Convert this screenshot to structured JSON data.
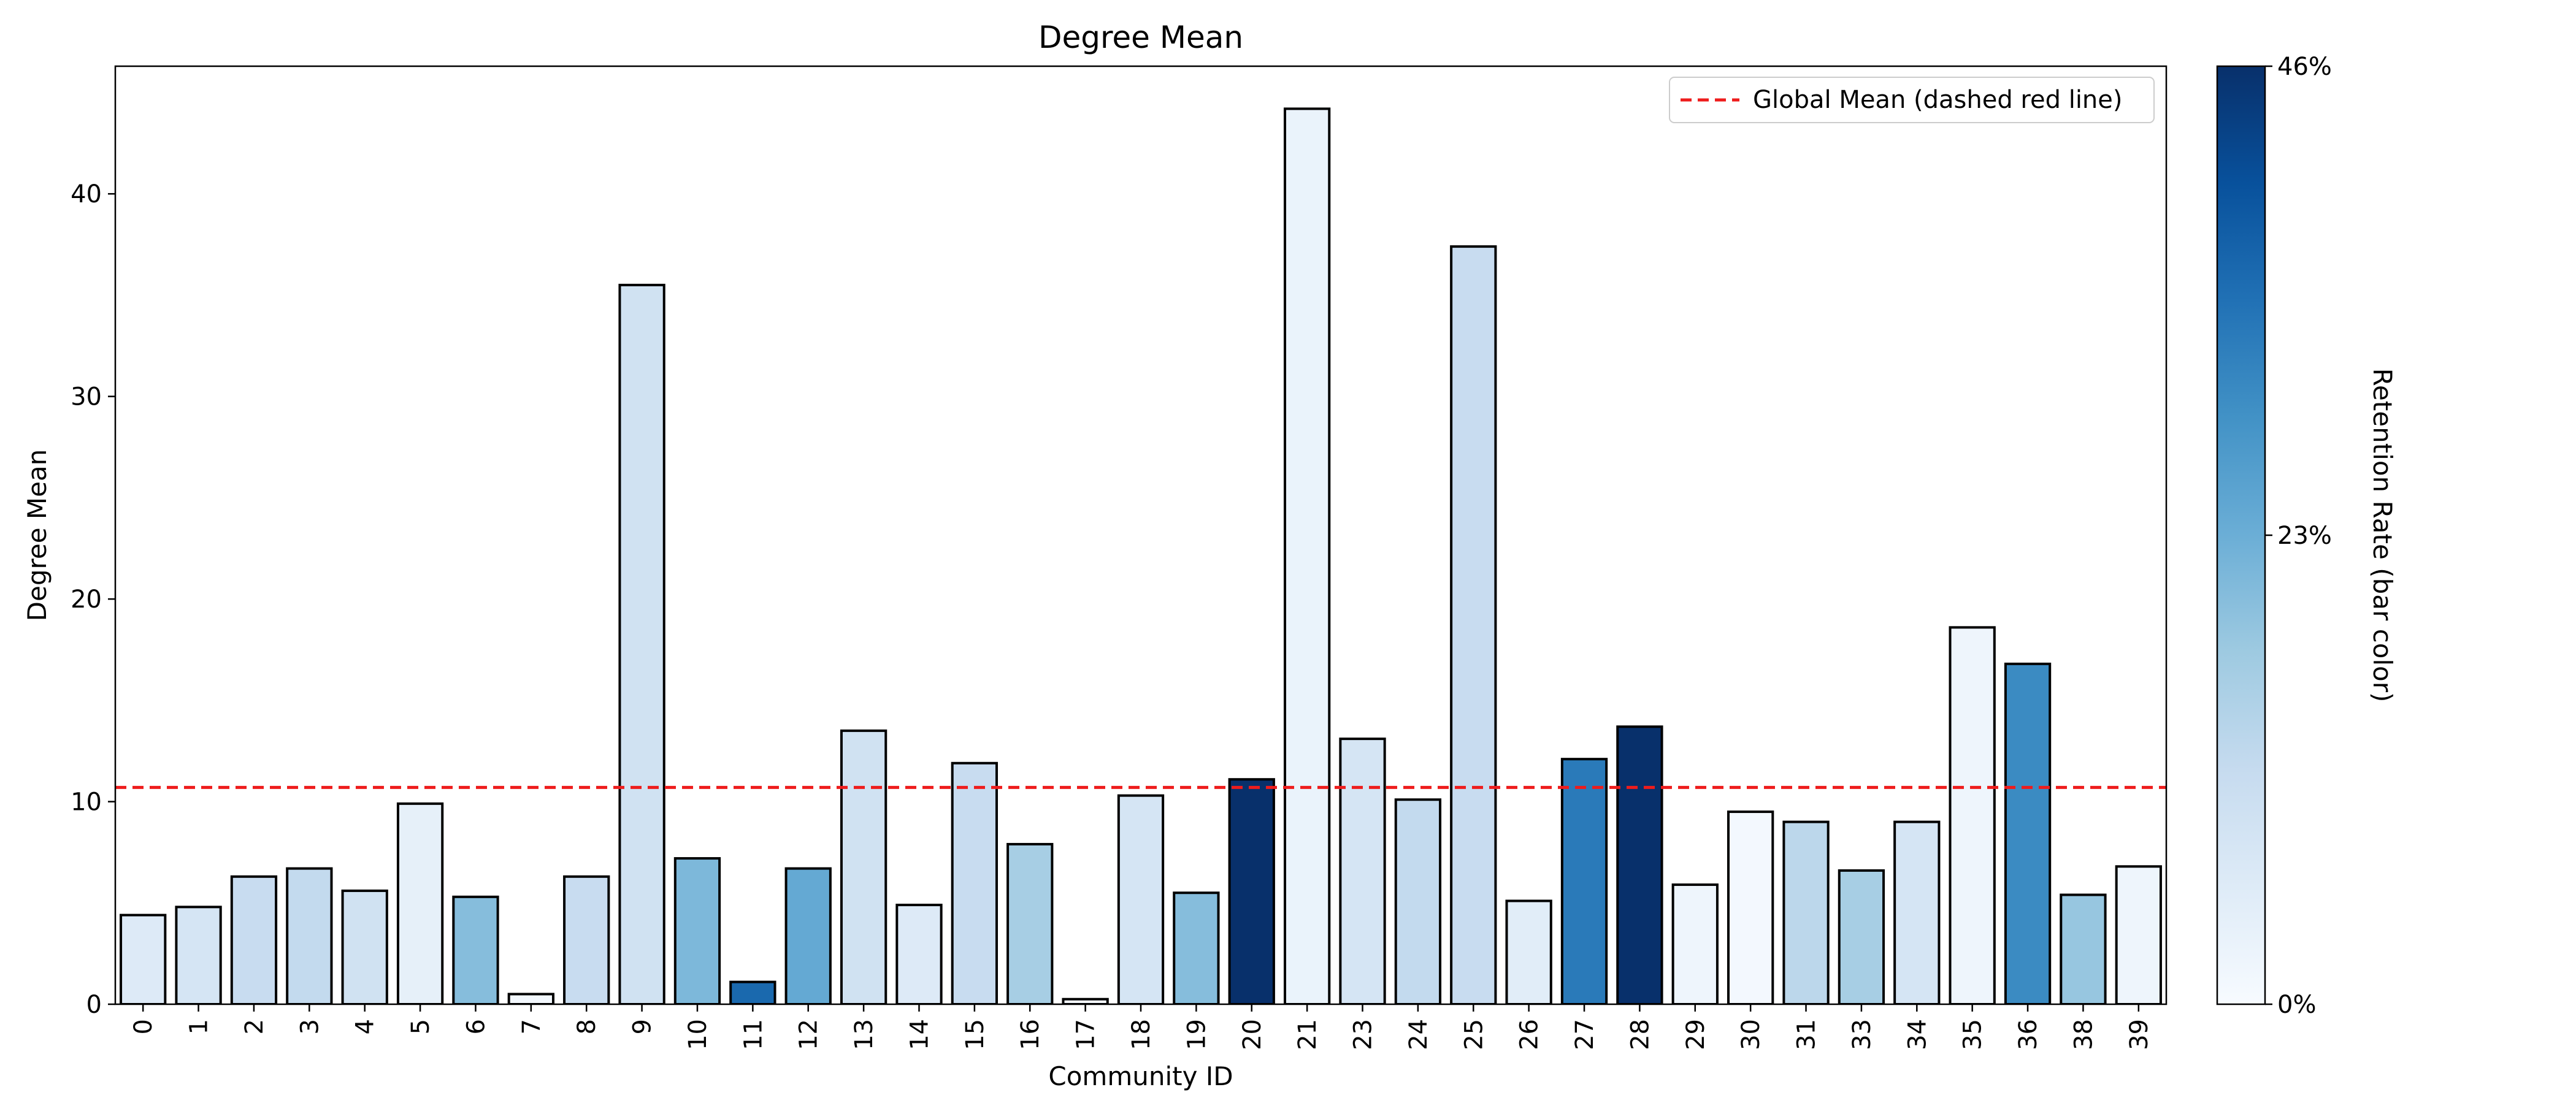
{
  "chart_data": {
    "type": "bar",
    "title": "Degree Mean",
    "xlabel": "Community ID",
    "ylabel": "Degree Mean",
    "ylim": [
      0,
      46.3
    ],
    "yticks": [
      0,
      10,
      20,
      30,
      40
    ],
    "grid": false,
    "legend": {
      "placement": "top-right",
      "entries": [
        "Global Mean (dashed red line)"
      ]
    },
    "global_mean": 10.7,
    "global_mean_color": "#ee1c1c",
    "bar_edge_color": "#000000",
    "categories": [
      "0",
      "1",
      "2",
      "3",
      "4",
      "5",
      "6",
      "7",
      "8",
      "9",
      "10",
      "11",
      "12",
      "13",
      "14",
      "15",
      "16",
      "17",
      "18",
      "19",
      "20",
      "21",
      "23",
      "24",
      "25",
      "26",
      "27",
      "28",
      "29",
      "30",
      "31",
      "33",
      "34",
      "35",
      "36",
      "38",
      "39"
    ],
    "values": [
      4.4,
      4.8,
      6.3,
      6.7,
      5.6,
      9.9,
      5.3,
      0.5,
      6.3,
      35.5,
      7.2,
      1.1,
      6.7,
      13.5,
      4.9,
      11.9,
      7.9,
      0.25,
      10.3,
      5.5,
      11.1,
      44.2,
      13.1,
      10.1,
      37.4,
      5.1,
      12.1,
      13.7,
      5.9,
      9.5,
      9.0,
      6.6,
      9.0,
      18.6,
      16.8,
      5.4,
      6.8
    ],
    "retention_rate_pct": [
      6,
      8,
      11,
      12,
      9,
      4,
      20,
      1,
      11,
      9,
      21,
      36,
      24,
      9,
      6,
      11,
      16,
      1,
      8,
      20,
      46,
      3,
      8,
      12,
      11,
      5,
      33,
      46,
      2,
      1,
      13,
      16,
      8,
      2,
      30,
      18,
      2
    ],
    "colorbar": {
      "label": "Retention Rate (bar color)",
      "ticks": [
        "0%",
        "23%",
        "46%"
      ],
      "min": 0,
      "max": 46,
      "colormap": "Blues",
      "color_stops": [
        "#f7fbff",
        "#deebf7",
        "#c6dbef",
        "#9ecae1",
        "#6baed6",
        "#4292c6",
        "#2171b5",
        "#08519c",
        "#08306b"
      ]
    }
  }
}
